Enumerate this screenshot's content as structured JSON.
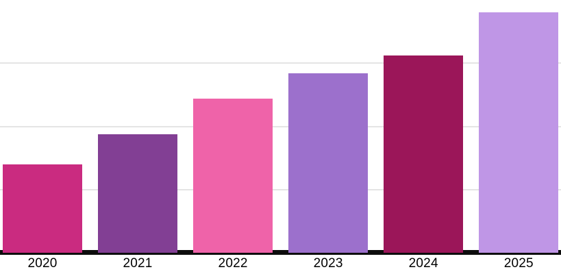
{
  "chart_data": {
    "type": "bar",
    "title": "",
    "xlabel": "",
    "ylabel": "",
    "categories": [
      "2020",
      "2021",
      "2022",
      "2023",
      "2024",
      "2025"
    ],
    "values": [
      35,
      47,
      61,
      71,
      78,
      95
    ],
    "bar_colors": [
      "#CA2B80",
      "#823F94",
      "#EF63A9",
      "#9C70CC",
      "#9B1659",
      "#BF96E6"
    ],
    "ylim": [
      0,
      100
    ],
    "y_axis_labels_visible": false,
    "legend": "none",
    "grid": {
      "visible": true,
      "values": [
        25,
        50,
        75
      ],
      "color": "#E4E4E4"
    },
    "x_axis_line_color": "#0D0D0D",
    "tick_label_color": "#000000",
    "background_color": "#FFFFFF"
  }
}
